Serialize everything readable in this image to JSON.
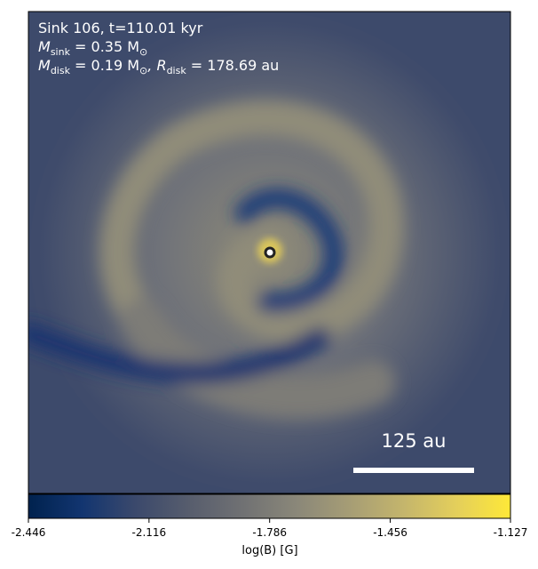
{
  "chart_data": {
    "type": "image",
    "annotations": [
      [
        {
          "text": "Sink 106, t=110.01 kyr"
        }
      ],
      [
        {
          "text": "M"
        },
        {
          "sub": "sink"
        },
        {
          "text": " = 0.35 M"
        },
        {
          "sub": "⊙"
        }
      ],
      [
        {
          "text": "M"
        },
        {
          "sub": "disk"
        },
        {
          "text": " = 0.19 M"
        },
        {
          "sub": "⊙"
        },
        {
          "text": ", R"
        },
        {
          "sub": "disk"
        },
        {
          "text": " = 178.69 au"
        }
      ]
    ],
    "scale_bar": "125 au",
    "colorbar": {
      "label": "log(B) [G]",
      "colormap": "cividis",
      "clim": [
        -2.446,
        -1.127
      ],
      "ticks": [
        -2.446,
        -2.116,
        -1.786,
        -1.456,
        -1.127
      ]
    }
  }
}
